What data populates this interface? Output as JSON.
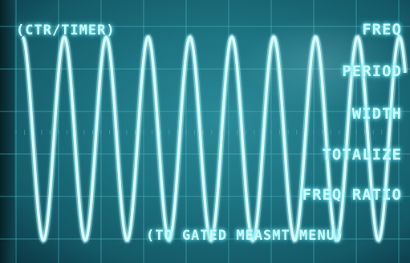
{
  "screen": {
    "mode_title": "(CTR/TIMER)",
    "softkeys": [
      {
        "label": "FREQ"
      },
      {
        "label": "PERIOD"
      },
      {
        "label": "WIDTH"
      },
      {
        "label": "TOTALIZE"
      },
      {
        "label": "FREQ RATIO"
      }
    ],
    "gated_menu_label": "(TO GATED MEASMT MENU)"
  },
  "trace": {
    "color": "#d6feff",
    "glow_color": "#7ff0ff",
    "cycles_visible": 9.5
  },
  "graticule": {
    "color": "#4fb8c4"
  }
}
